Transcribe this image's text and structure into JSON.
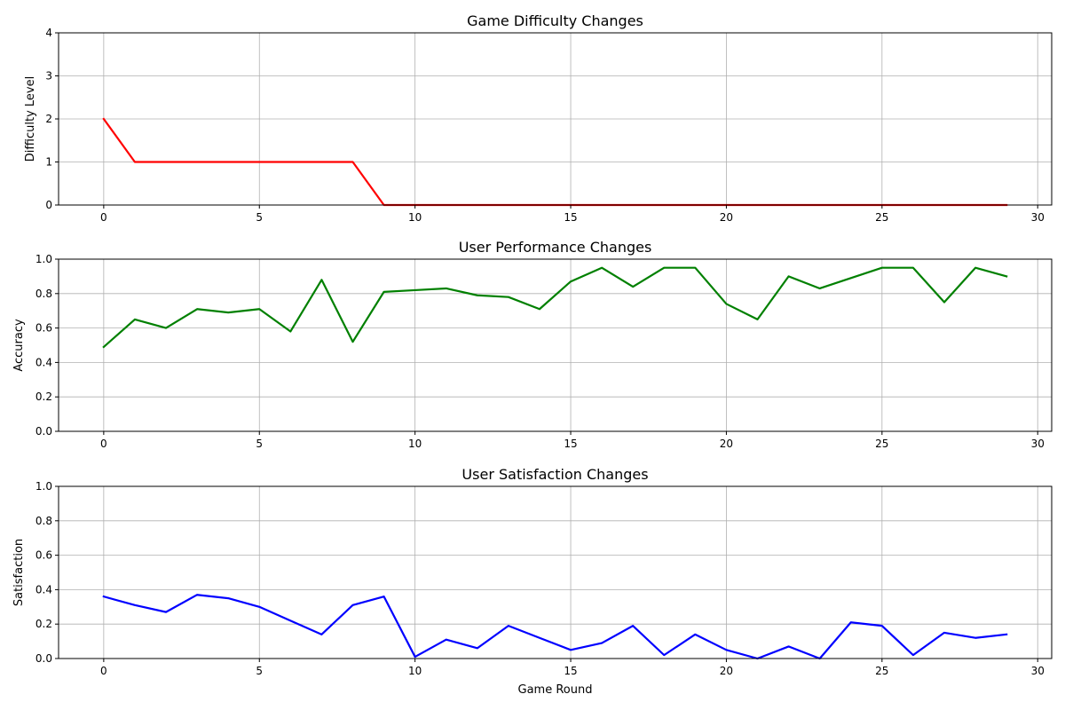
{
  "chart_data": [
    {
      "type": "line",
      "title": "Game Difficulty Changes",
      "xlabel": "",
      "ylabel": "Difficulty Level",
      "xlim": [
        -1.45,
        30.45
      ],
      "ylim": [
        0,
        4
      ],
      "xticks": [
        0,
        5,
        10,
        15,
        20,
        25,
        30
      ],
      "yticks": [
        0,
        1,
        2,
        3,
        4
      ],
      "ytick_labels": [
        "0",
        "1",
        "2",
        "3",
        "4"
      ],
      "grid": true,
      "color": "#ff0000",
      "series": [
        {
          "x": [
            0,
            1,
            2,
            3,
            4,
            5,
            6,
            7,
            8,
            9,
            10,
            11,
            12,
            13,
            14,
            15,
            16,
            17,
            18,
            19,
            20,
            21,
            22,
            23,
            24,
            25,
            26,
            27,
            28,
            29
          ],
          "values": [
            2,
            1,
            1,
            1,
            1,
            1,
            1,
            1,
            1,
            0,
            0,
            0,
            0,
            0,
            0,
            0,
            0,
            0,
            0,
            0,
            0,
            0,
            0,
            0,
            0,
            0,
            0,
            0,
            0,
            0
          ]
        }
      ]
    },
    {
      "type": "line",
      "title": "User Performance Changes",
      "xlabel": "",
      "ylabel": "Accuracy",
      "xlim": [
        -1.45,
        30.45
      ],
      "ylim": [
        0,
        1
      ],
      "xticks": [
        0,
        5,
        10,
        15,
        20,
        25,
        30
      ],
      "yticks": [
        0,
        0.2,
        0.4,
        0.6,
        0.8,
        1.0
      ],
      "ytick_labels": [
        "0.0",
        "0.2",
        "0.4",
        "0.6",
        "0.8",
        "1.0"
      ],
      "grid": true,
      "color": "#008000",
      "series": [
        {
          "x": [
            0,
            1,
            2,
            3,
            4,
            5,
            6,
            7,
            8,
            9,
            10,
            11,
            12,
            13,
            14,
            15,
            16,
            17,
            18,
            19,
            20,
            21,
            22,
            23,
            24,
            25,
            26,
            27,
            28,
            29
          ],
          "values": [
            0.49,
            0.65,
            0.6,
            0.71,
            0.69,
            0.71,
            0.58,
            0.88,
            0.52,
            0.81,
            0.82,
            0.83,
            0.79,
            0.78,
            0.71,
            0.87,
            0.95,
            0.84,
            0.95,
            0.95,
            0.74,
            0.65,
            0.9,
            0.83,
            0.89,
            0.95,
            0.95,
            0.75,
            0.95,
            0.9
          ]
        }
      ]
    },
    {
      "type": "line",
      "title": "User Satisfaction Changes",
      "xlabel": "Game Round",
      "ylabel": "Satisfaction",
      "xlim": [
        -1.45,
        30.45
      ],
      "ylim": [
        0,
        1
      ],
      "xticks": [
        0,
        5,
        10,
        15,
        20,
        25,
        30
      ],
      "yticks": [
        0,
        0.2,
        0.4,
        0.6,
        0.8,
        1.0
      ],
      "ytick_labels": [
        "0.0",
        "0.2",
        "0.4",
        "0.6",
        "0.8",
        "1.0"
      ],
      "grid": true,
      "color": "#0000ff",
      "series": [
        {
          "x": [
            0,
            1,
            2,
            3,
            4,
            5,
            6,
            7,
            8,
            9,
            10,
            11,
            12,
            13,
            14,
            15,
            16,
            17,
            18,
            19,
            20,
            21,
            22,
            23,
            24,
            25,
            26,
            27,
            28,
            29
          ],
          "values": [
            0.36,
            0.31,
            0.27,
            0.37,
            0.35,
            0.3,
            0.22,
            0.14,
            0.31,
            0.36,
            0.01,
            0.11,
            0.06,
            0.19,
            0.12,
            0.05,
            0.09,
            0.19,
            0.02,
            0.14,
            0.05,
            0.0,
            0.07,
            0.0,
            0.21,
            0.19,
            0.02,
            0.15,
            0.12,
            0.14
          ]
        }
      ]
    }
  ]
}
